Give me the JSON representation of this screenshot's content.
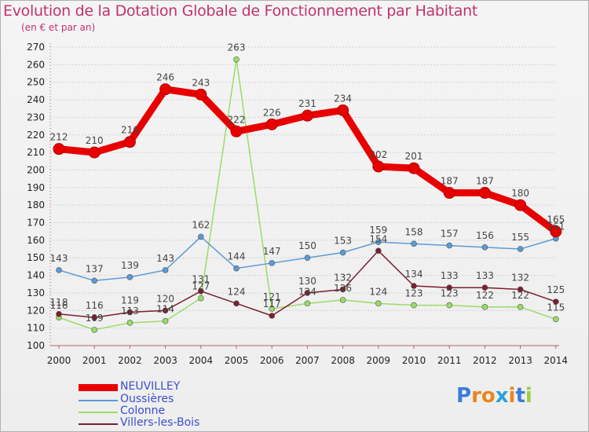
{
  "title": "Evolution de la Dotation Globale de Fonctionnement par Habitant",
  "subtitle": "(en € et par an)",
  "logo_text": "Proxiti",
  "chart_data": {
    "type": "line",
    "title": "Evolution de la Dotation Globale de Fonctionnement par Habitant",
    "subtitle": "(en € et par an)",
    "categories": [
      "2000",
      "2001",
      "2002",
      "2003",
      "2004",
      "2005",
      "2006",
      "2007",
      "2008",
      "2009",
      "2010",
      "2011",
      "2012",
      "2013",
      "2014"
    ],
    "ylim": [
      100,
      270
    ],
    "yticks": [
      100,
      110,
      120,
      130,
      140,
      150,
      160,
      170,
      180,
      190,
      200,
      210,
      220,
      230,
      240,
      250,
      260,
      270
    ],
    "grid": "horizontal",
    "legend_position": "bottom-left",
    "series": [
      {
        "name": "NEUVILLEY",
        "color": "#e80000",
        "values": [
          212,
          210,
          216,
          246,
          243,
          222,
          226,
          231,
          234,
          202,
          201,
          187,
          187,
          180,
          165
        ]
      },
      {
        "name": "Oussières",
        "color": "#5b9bd5",
        "values": [
          143,
          137,
          139,
          143,
          162,
          144,
          147,
          150,
          153,
          159,
          158,
          157,
          156,
          155,
          161
        ]
      },
      {
        "name": "Colonne",
        "color": "#99dd66",
        "values": [
          116,
          109,
          113,
          114,
          127,
          263,
          121,
          124,
          126,
          124,
          123,
          123,
          122,
          122,
          115
        ]
      },
      {
        "name": "Villers-les-Bois",
        "color": "#7a1f2e",
        "values": [
          118,
          116,
          119,
          120,
          131,
          124,
          117,
          130,
          132,
          154,
          134,
          133,
          133,
          132,
          125
        ]
      }
    ]
  }
}
